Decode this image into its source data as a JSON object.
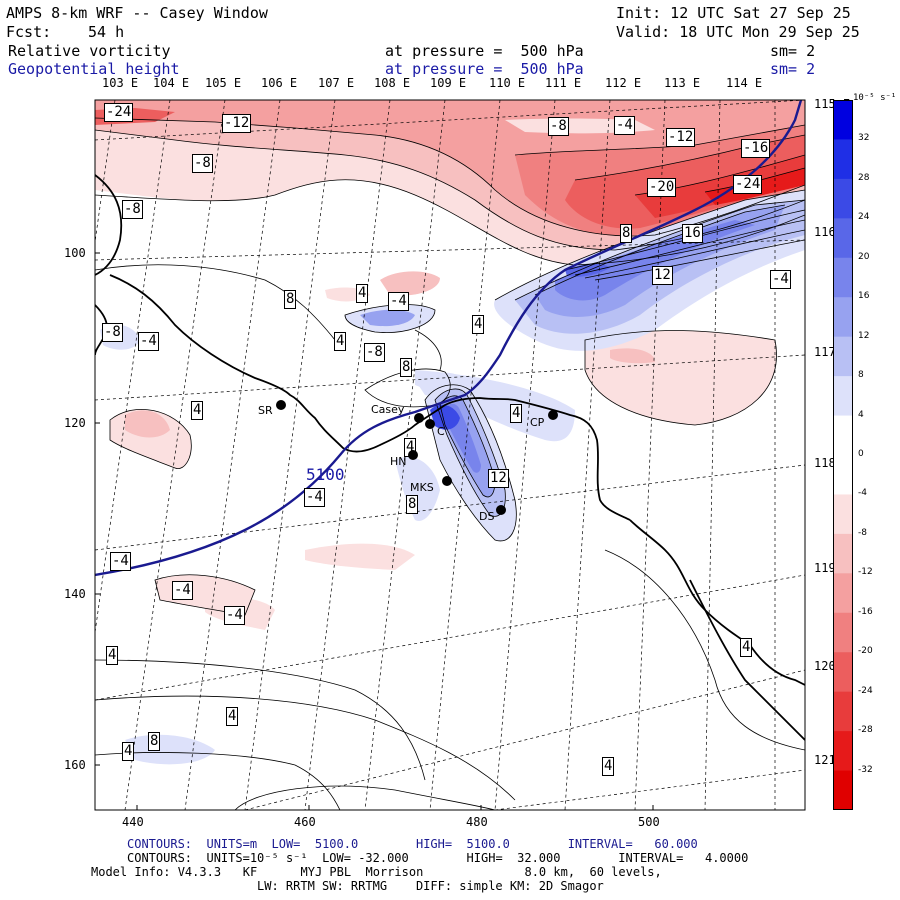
{
  "header": {
    "title": "AMPS 8-km WRF -- Casey Window",
    "init": "Init: 12 UTC Sat 27 Sep 25",
    "fcst_label": "Fcst:",
    "fcst_value": "54 h",
    "valid": "Valid: 18 UTC Mon 29 Sep 25",
    "field1": "Relative vorticity",
    "field2": "Geopotential height",
    "pressure1": "at pressure =  500 hPa",
    "pressure2": "at pressure =  500 hPa",
    "sm1": "sm= 2",
    "sm2": "sm= 2"
  },
  "map": {
    "lon_top": [
      "103 E",
      "104 E",
      "105 E",
      "106 E",
      "107 E",
      "108 E",
      "109 E",
      "110 E",
      "111 E",
      "112 E",
      "113 E",
      "114 E"
    ],
    "lon_right": [
      "115 E",
      "116 E",
      "117 E",
      "118 E",
      "119 E",
      "120 E",
      "121 E"
    ],
    "y_ticks": [
      "100",
      "120",
      "140",
      "160"
    ],
    "x_ticks": [
      "440",
      "460",
      "480",
      "500"
    ],
    "stations": [
      "Casey",
      "C",
      "HN",
      "MKS",
      "DS",
      "CP",
      "SR"
    ],
    "height_label": "5100",
    "contour_labels": [
      "-24",
      "-12",
      "-8",
      "-4",
      "-12",
      "-16",
      "-20",
      "-24",
      "8",
      "16",
      "12",
      "-4",
      "-8",
      "-8",
      "8",
      "4",
      "-4",
      "4",
      "-8",
      "8",
      "4",
      "-4",
      "-8",
      "4",
      "4",
      "12",
      "-4",
      "8",
      "-4",
      "-4",
      "-4",
      "4",
      "4",
      "4",
      "8",
      "4",
      "4",
      "4"
    ]
  },
  "colorbar": {
    "units": "10⁻⁵ s⁻¹",
    "ticks": [
      "32",
      "28",
      "24",
      "20",
      "16",
      "12",
      "8",
      "4",
      "0",
      "-4",
      "-8",
      "-12",
      "-16",
      "-20",
      "-24",
      "-28",
      "-32"
    ],
    "colors": [
      "#0000e0",
      "#1f2fe6",
      "#3b4ae6",
      "#5967e8",
      "#7884ec",
      "#97a2f0",
      "#b8c0f4",
      "#dde1fa",
      "#ffffff",
      "#ffffff",
      "#fbe0e0",
      "#f7c0c0",
      "#f4a0a0",
      "#f08080",
      "#ec5e5e",
      "#e83c3c",
      "#e61a1a",
      "#e00000"
    ]
  },
  "footer": {
    "line1": "CONTOURS:  UNITS=m  LOW=  5100.0        HIGH=  5100.0        INTERVAL=   60.000",
    "line2": "CONTOURS:  UNITS=10⁻⁵ s⁻¹  LOW= -32.000        HIGH=  32.000        INTERVAL=   4.0000",
    "line3": "Model Info: V4.3.3   KF      MYJ PBL  Morrison              8.0 km,  60 levels,",
    "line4": "LW: RRTM SW: RRTMG    DIFF: simple KM: 2D Smagor"
  }
}
